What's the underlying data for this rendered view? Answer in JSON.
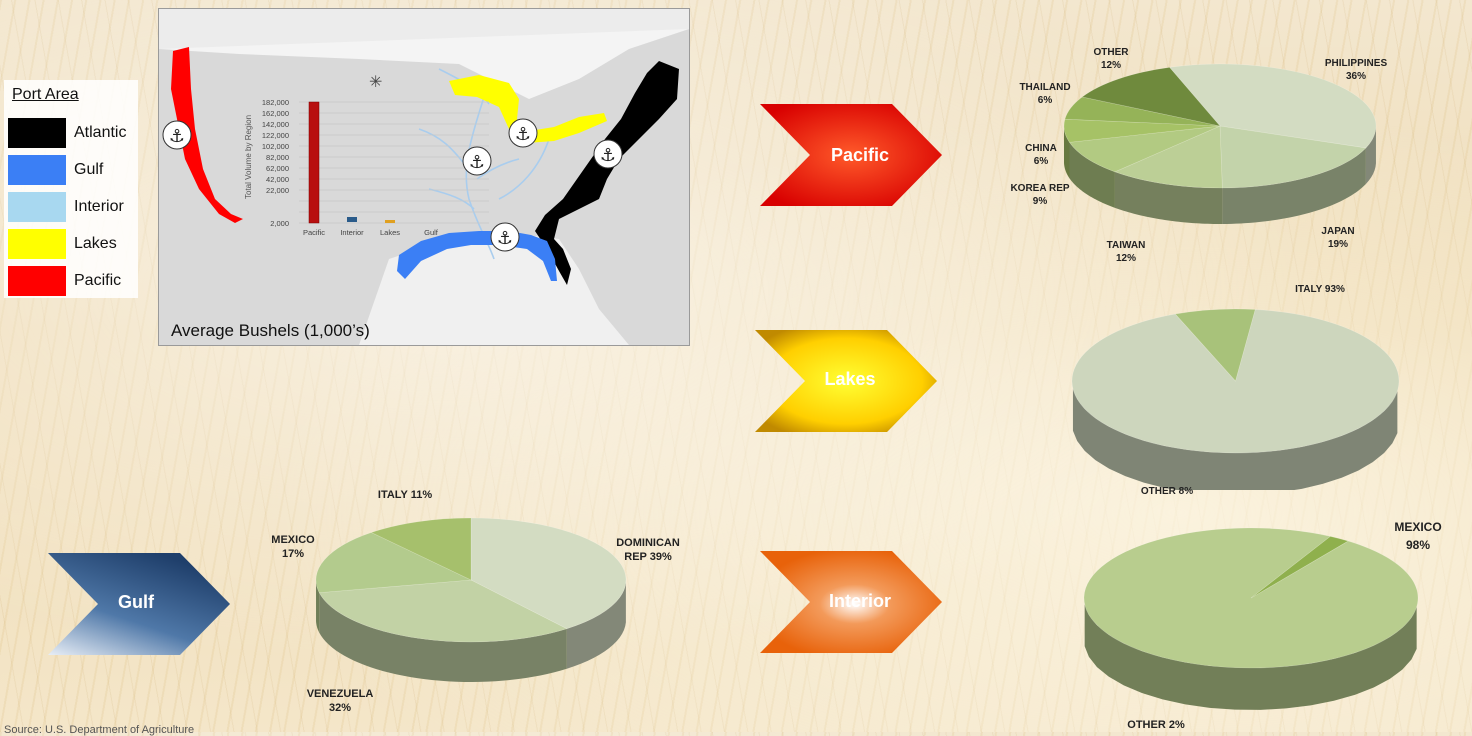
{
  "legend": {
    "title": "Port Area",
    "items": [
      {
        "label": "Atlantic",
        "color": "#000000"
      },
      {
        "label": "Gulf",
        "color": "#3b7ff5"
      },
      {
        "label": "Interior",
        "color": "#a8d8f0"
      },
      {
        "label": "Lakes",
        "color": "#ffff00"
      },
      {
        "label": "Pacific",
        "color": "#ff0000"
      }
    ]
  },
  "map": {
    "caption": "Average Bushels (1,000’s)",
    "inset_chart": {
      "ylabel": "Total Volume by Region",
      "ticks": [
        "182,000",
        "162,000",
        "142,000",
        "122,000",
        "102,000",
        "82,000",
        "62,000",
        "42,000",
        "22,000",
        "2,000"
      ],
      "categories": [
        "Pacific",
        "Interior",
        "Lakes",
        "Gulf"
      ]
    }
  },
  "arrows": {
    "pacific": "Pacific",
    "lakes": "Lakes",
    "gulf": "Gulf",
    "interior": "Interior"
  },
  "chart_data": [
    {
      "type": "pie",
      "region": "Pacific",
      "slices": [
        {
          "label": "PHILIPPINES",
          "pct": "36%",
          "value": 36
        },
        {
          "label": "JAPAN",
          "pct": "19%",
          "value": 19
        },
        {
          "label": "TAIWAN",
          "pct": "12%",
          "value": 12
        },
        {
          "label": "KOREA REP",
          "pct": "9%",
          "value": 9
        },
        {
          "label": "CHINA",
          "pct": "6%",
          "value": 6
        },
        {
          "label": "THAILAND",
          "pct": "6%",
          "value": 6
        },
        {
          "label": "OTHER",
          "pct": "12%",
          "value": 12
        }
      ]
    },
    {
      "type": "pie",
      "region": "Lakes",
      "slices": [
        {
          "label": "ITALY",
          "pct": "93%",
          "value": 93
        },
        {
          "label": "OTHER",
          "pct": "8%",
          "value": 8
        }
      ]
    },
    {
      "type": "pie",
      "region": "Gulf",
      "slices": [
        {
          "label": "DOMINICAN REP",
          "pct": "39%",
          "value": 39
        },
        {
          "label": "VENEZUELA",
          "pct": "32%",
          "value": 32
        },
        {
          "label": "MEXICO",
          "pct": "17%",
          "value": 17
        },
        {
          "label": "ITALY",
          "pct": "11%",
          "value": 11
        }
      ]
    },
    {
      "type": "pie",
      "region": "Interior",
      "slices": [
        {
          "label": "MEXICO",
          "pct": "98%",
          "value": 98
        },
        {
          "label": "OTHER",
          "pct": "2%",
          "value": 2
        }
      ]
    }
  ],
  "labels": {
    "pacific": {
      "philippines": [
        "PHILIPPINES",
        "36%"
      ],
      "japan": [
        "JAPAN",
        "19%"
      ],
      "taiwan": [
        "TAIWAN",
        "12%"
      ],
      "korea": [
        "KOREA REP",
        "9%"
      ],
      "china": [
        "CHINA",
        "6%"
      ],
      "thailand": [
        "THAILAND",
        "6%"
      ],
      "other": [
        "OTHER",
        "12%"
      ]
    },
    "lakes": {
      "italy": "ITALY 93%",
      "other": "OTHER 8%"
    },
    "gulf": {
      "dominican": [
        "DOMINICAN",
        "REP 39%"
      ],
      "venezuela": [
        "VENEZUELA",
        "32%"
      ],
      "mexico": [
        "MEXICO",
        "17%"
      ],
      "italy": "ITALY  11%"
    },
    "interior": {
      "mexico": [
        "MEXICO",
        "98%"
      ],
      "other": "OTHER 2%"
    }
  },
  "source": "Source: U.S. Department of Agriculture"
}
